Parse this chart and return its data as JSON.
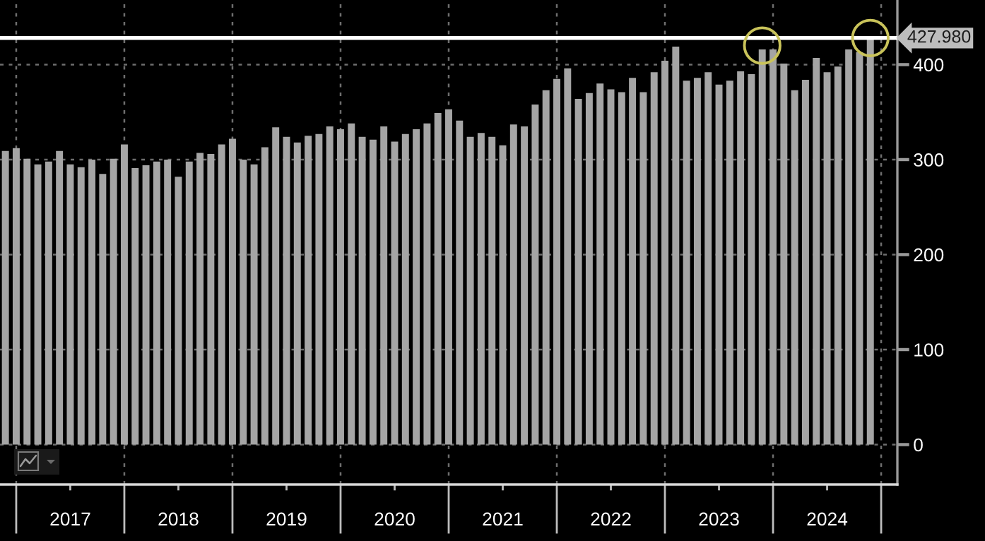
{
  "chart_data": {
    "type": "bar",
    "x": [
      2016.9,
      2017.0,
      2017.1,
      2017.2,
      2017.3,
      2017.4,
      2017.5,
      2017.6,
      2017.7,
      2017.8,
      2017.9,
      2018.0,
      2018.1,
      2018.2,
      2018.3,
      2018.4,
      2018.5,
      2018.6,
      2018.7,
      2018.8,
      2018.9,
      2019.0,
      2019.1,
      2019.2,
      2019.3,
      2019.4,
      2019.5,
      2019.6,
      2019.7,
      2019.8,
      2019.9,
      2020.0,
      2020.1,
      2020.2,
      2020.3,
      2020.4,
      2020.5,
      2020.6,
      2020.7,
      2020.8,
      2020.9,
      2021.0,
      2021.1,
      2021.2,
      2021.3,
      2021.4,
      2021.5,
      2021.6,
      2021.7,
      2021.8,
      2021.9,
      2022.0,
      2022.1,
      2022.2,
      2022.3,
      2022.4,
      2022.5,
      2022.6,
      2022.7,
      2022.8,
      2022.9,
      2023.0,
      2023.1,
      2023.2,
      2023.3,
      2023.4,
      2023.5,
      2023.6,
      2023.7,
      2023.8,
      2023.9,
      2024.0,
      2024.1,
      2024.2,
      2024.3,
      2024.4,
      2024.5,
      2024.6,
      2024.7,
      2024.8,
      2024.9
    ],
    "series": [
      {
        "color": "#a5a5a5",
        "values": [
          309,
          312,
          301,
          295,
          298,
          309,
          295,
          292,
          300,
          285,
          301,
          316,
          291,
          294,
          298,
          300,
          282,
          298,
          307,
          306,
          316,
          322,
          300,
          295,
          313,
          334,
          324,
          318,
          325,
          327,
          335,
          332,
          338,
          324,
          321,
          335,
          319,
          327,
          332,
          338,
          349,
          353,
          341,
          324,
          328,
          324,
          315,
          337,
          335,
          358,
          373,
          385,
          396,
          364,
          370,
          380,
          374,
          371,
          386,
          371,
          392,
          404,
          419,
          383,
          386,
          392,
          379,
          383,
          393,
          390,
          416,
          416,
          401,
          373,
          384,
          407,
          392,
          398,
          416,
          413,
          427.98
        ]
      },
      {
        "type": "scatter",
        "color": "#c9c35a",
        "x": [
          2023.9,
          2024.9
        ],
        "values": [
          420,
          428
        ]
      }
    ],
    "xlim": [
      2016.85,
      2025.15
    ],
    "xticks": [
      {
        "value": 2017,
        "label": null
      },
      {
        "value": 2017.5,
        "label": "2017"
      },
      {
        "value": 2018,
        "label": null
      },
      {
        "value": 2018.5,
        "label": "2018"
      },
      {
        "value": 2019,
        "label": null
      },
      {
        "value": 2019.5,
        "label": "2019"
      },
      {
        "value": 2020,
        "label": null
      },
      {
        "value": 2020.5,
        "label": "2020"
      },
      {
        "value": 2021,
        "label": null
      },
      {
        "value": 2021.5,
        "label": "2021"
      },
      {
        "value": 2022,
        "label": null
      },
      {
        "value": 2022.5,
        "label": "2022"
      },
      {
        "value": 2023,
        "label": null
      },
      {
        "value": 2023.5,
        "label": "2023"
      },
      {
        "value": 2024,
        "label": null
      },
      {
        "value": 2024.5,
        "label": "2024"
      },
      {
        "value": 2025,
        "label": null
      }
    ],
    "ylim": [
      -42,
      468
    ],
    "yticks": [
      0,
      100,
      200,
      300,
      400
    ],
    "ref_lines": [
      {
        "axis": "y",
        "value": 427.98,
        "label": "427.980",
        "color": "#ffffff"
      }
    ],
    "grid": true,
    "marker": "circle"
  }
}
